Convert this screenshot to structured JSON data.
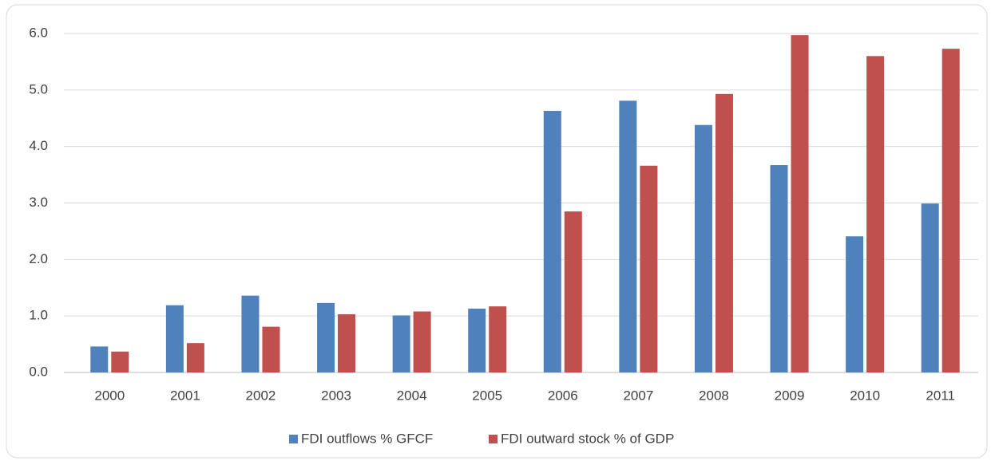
{
  "chart_data": {
    "type": "bar",
    "categories": [
      "2000",
      "2001",
      "2002",
      "2003",
      "2004",
      "2005",
      "2006",
      "2007",
      "2008",
      "2009",
      "2010",
      "2011"
    ],
    "series": [
      {
        "name": "FDI outflows % GFCF",
        "color": "#4f81bd",
        "values": [
          0.46,
          1.19,
          1.36,
          1.23,
          1.01,
          1.13,
          4.63,
          4.81,
          4.38,
          3.67,
          2.41,
          2.99
        ]
      },
      {
        "name": "FDI outward stock % of GDP",
        "color": "#c0504d",
        "values": [
          0.37,
          0.52,
          0.81,
          1.03,
          1.08,
          1.17,
          2.85,
          3.66,
          4.93,
          5.97,
          5.6,
          5.73
        ]
      }
    ],
    "ylim": [
      0,
      6
    ],
    "yticks": [
      {
        "value": 0,
        "label": "0.0"
      },
      {
        "value": 1,
        "label": "1.0"
      },
      {
        "value": 2,
        "label": "2.0"
      },
      {
        "value": 3,
        "label": "3.0"
      },
      {
        "value": 4,
        "label": "4.0"
      },
      {
        "value": 5,
        "label": "5.0"
      },
      {
        "value": 6,
        "label": "6.0"
      }
    ],
    "grid": true,
    "legend": "bottom"
  }
}
